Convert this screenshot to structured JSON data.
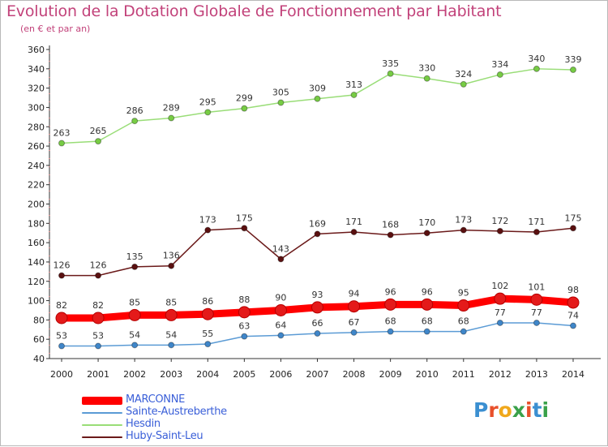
{
  "title": "Evolution de la Dotation Globale de Fonctionnement par Habitant",
  "subtitle": "(en € et par an)",
  "logo": {
    "letters": [
      "P",
      "r",
      "o",
      "x",
      "i",
      "t",
      "i"
    ],
    "colors": [
      "#3b8fd1",
      "#e8502b",
      "#f0a81c",
      "#3aa14a",
      "#e8502b",
      "#3b8fd1",
      "#3aa14a"
    ]
  },
  "chart_data": {
    "type": "line",
    "x": [
      2000,
      2001,
      2002,
      2003,
      2004,
      2005,
      2006,
      2007,
      2008,
      2009,
      2010,
      2011,
      2012,
      2013,
      2014
    ],
    "ylim": [
      40,
      360
    ],
    "yticks": [
      40,
      60,
      80,
      100,
      120,
      140,
      160,
      180,
      200,
      220,
      240,
      260,
      280,
      300,
      320,
      340,
      360
    ],
    "grid": false,
    "legend_position": "bottom-left",
    "series": [
      {
        "name": "MARCONNE",
        "color": "#ff0000",
        "marker_color": "#e41a1a",
        "thick": true,
        "values": [
          82,
          82,
          85,
          85,
          86,
          88,
          90,
          93,
          94,
          96,
          96,
          95,
          102,
          101,
          98
        ]
      },
      {
        "name": "Sainte-Austreberthe",
        "color": "#5b9bd5",
        "marker_color": "#3f86c9",
        "thick": false,
        "values": [
          53,
          53,
          54,
          54,
          55,
          63,
          64,
          66,
          67,
          68,
          68,
          68,
          77,
          77,
          74
        ]
      },
      {
        "name": "Hesdin",
        "color": "#99dd77",
        "marker_color": "#77cc44",
        "thick": false,
        "values": [
          263,
          265,
          286,
          289,
          295,
          299,
          305,
          309,
          313,
          335,
          330,
          324,
          334,
          340,
          339
        ]
      },
      {
        "name": "Huby-Saint-Leu",
        "color": "#6b1a1a",
        "marker_color": "#5a1010",
        "thick": false,
        "values": [
          126,
          126,
          135,
          136,
          173,
          175,
          143,
          169,
          171,
          168,
          170,
          173,
          172,
          171,
          175
        ]
      }
    ]
  }
}
